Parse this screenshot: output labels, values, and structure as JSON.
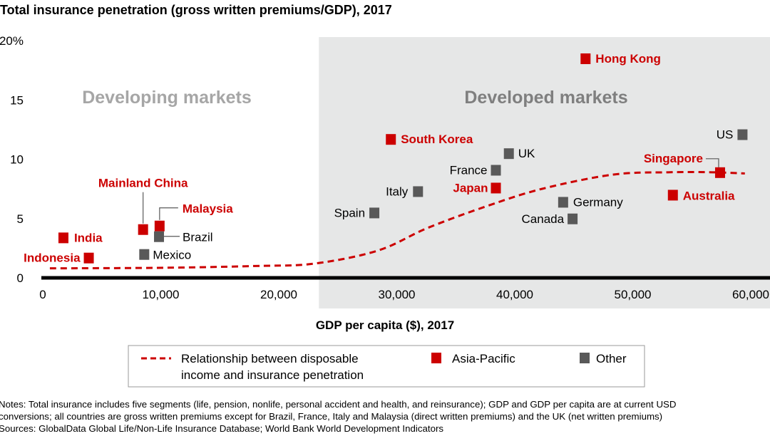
{
  "chart_data": {
    "type": "scatter",
    "title": "Total insurance penetration (gross written premiums/GDP), 2017",
    "xlabel": "GDP per capita ($), 2017",
    "ylabel": "",
    "xlim": [
      0,
      60000
    ],
    "ylim": [
      0,
      20
    ],
    "x_ticks": [
      "0",
      "10,000",
      "20,000",
      "30,000",
      "40,000",
      "50,000",
      "60,000"
    ],
    "x_tick_values": [
      0,
      10000,
      20000,
      30000,
      40000,
      50000,
      60000
    ],
    "y_ticks": [
      "0",
      "5",
      "10",
      "15",
      "20%"
    ],
    "y_tick_values": [
      0,
      5,
      10,
      15,
      20
    ],
    "grid": false,
    "regions": [
      {
        "label": "Developing markets",
        "x_range": [
          0,
          23400
        ],
        "shaded": false
      },
      {
        "label": "Developed markets",
        "x_range": [
          23400,
          60000
        ],
        "shaded": true
      }
    ],
    "series": [
      {
        "name": "Asia-Pacific",
        "color": "#cc0000",
        "points": [
          {
            "label": "Indonesia",
            "x": 3900,
            "y": 1.7
          },
          {
            "label": "India",
            "x": 1750,
            "y": 3.4
          },
          {
            "label": "Mainland China",
            "x": 8500,
            "y": 4.1
          },
          {
            "label": "Malaysia",
            "x": 9900,
            "y": 4.4
          },
          {
            "label": "South Korea",
            "x": 29500,
            "y": 11.7
          },
          {
            "label": "Japan",
            "x": 38400,
            "y": 7.6
          },
          {
            "label": "Hong Kong",
            "x": 46000,
            "y": 18.5
          },
          {
            "label": "Singapore",
            "x": 57400,
            "y": 8.9
          },
          {
            "label": "Australia",
            "x": 53400,
            "y": 7.0
          }
        ]
      },
      {
        "name": "Other",
        "color": "#595959",
        "points": [
          {
            "label": "Brazil",
            "x": 9850,
            "y": 3.5
          },
          {
            "label": "Mexico",
            "x": 8600,
            "y": 2.0
          },
          {
            "label": "Spain",
            "x": 28100,
            "y": 5.5
          },
          {
            "label": "Italy",
            "x": 31800,
            "y": 7.3
          },
          {
            "label": "France",
            "x": 38400,
            "y": 9.1
          },
          {
            "label": "UK",
            "x": 39500,
            "y": 10.5
          },
          {
            "label": "Germany",
            "x": 44100,
            "y": 6.4
          },
          {
            "label": "Canada",
            "x": 44900,
            "y": 5.0
          },
          {
            "label": "US",
            "x": 59300,
            "y": 12.1
          }
        ]
      },
      {
        "name": "Relationship between disposable income and insurance penetration",
        "type": "line",
        "style": "dashed",
        "color": "#cc0000",
        "points": [
          {
            "x": 600,
            "y": 0.8
          },
          {
            "x": 10300,
            "y": 0.85
          },
          {
            "x": 18000,
            "y": 1.0
          },
          {
            "x": 23000,
            "y": 1.2
          },
          {
            "x": 28400,
            "y": 2.3
          },
          {
            "x": 32600,
            "y": 4.2
          },
          {
            "x": 37500,
            "y": 6.0
          },
          {
            "x": 42300,
            "y": 7.5
          },
          {
            "x": 48300,
            "y": 8.7
          },
          {
            "x": 53000,
            "y": 8.9
          },
          {
            "x": 56800,
            "y": 8.9
          },
          {
            "x": 59500,
            "y": 8.8
          }
        ]
      }
    ],
    "legend": {
      "placement": "bottom",
      "items": [
        {
          "label_line1": "Relationship between disposable",
          "label_line2": "income and insurance penetration",
          "marker": "dashed-line",
          "color": "#cc0000"
        },
        {
          "label": "Asia-Pacific",
          "marker": "square",
          "color": "#cc0000"
        },
        {
          "label": "Other",
          "marker": "square",
          "color": "#595959"
        }
      ]
    },
    "colors": {
      "asia_pacific": "#cc0000",
      "other": "#595959",
      "developed_shade": "#e6e7e7",
      "region_label": "#a6a6a6",
      "developed_label": "#7f7f7f"
    }
  },
  "notes": {
    "line1": "Notes: Total insurance includes five segments (life, pension, nonlife, personal accident and health, and reinsurance); GDP and GDP per capita are at current USD",
    "line2": "conversions; all countries are gross written premiums except for Brazil, France, Italy and Malaysia (direct written premiums) and the UK (net written premiums)",
    "line3": "Sources: GlobalData Global Life/Non-Life Insurance Database; World Bank World Development Indicators"
  }
}
